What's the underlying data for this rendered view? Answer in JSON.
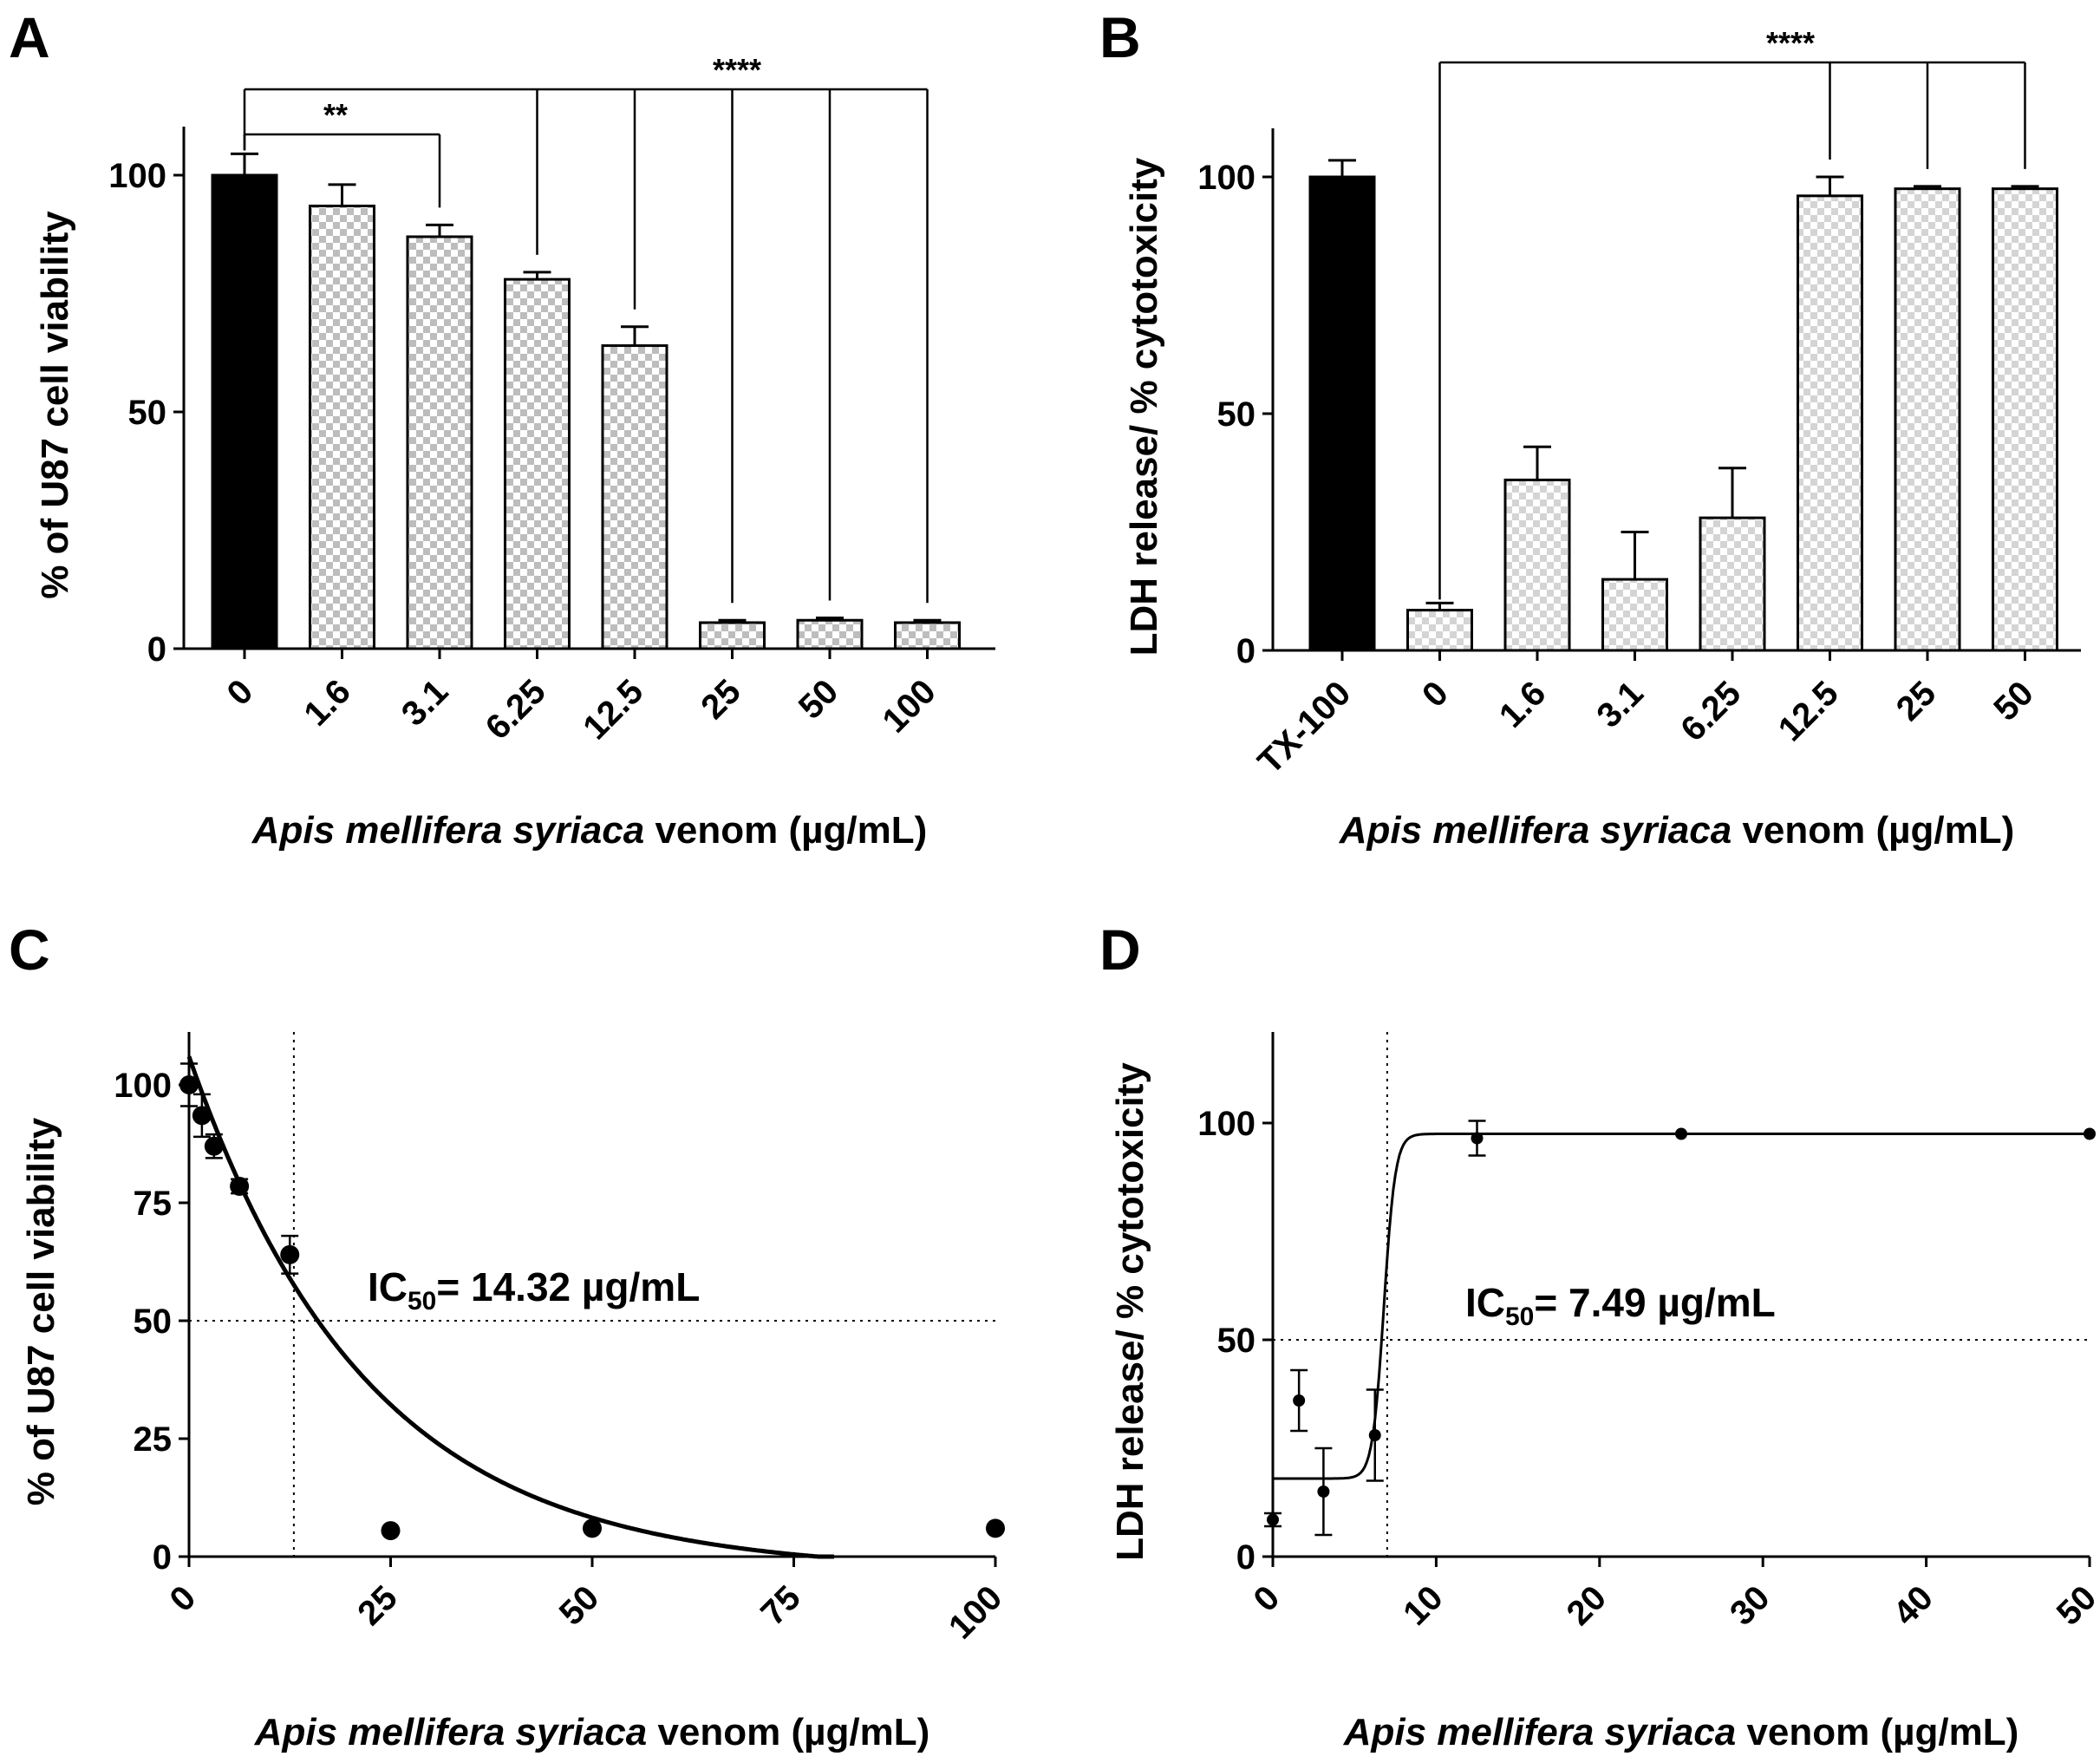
{
  "colors": {
    "ink": "#000000",
    "checker_light": "#ffffff",
    "checker_dark_A": "#bdbdbd",
    "checker_dark_B": "#d4d4d4"
  },
  "chart_data": [
    {
      "panel": "A",
      "type": "bar",
      "ylabel": "% of U87 cell viability",
      "xlabel_italic": "Apis mellifera syriaca",
      "xlabel_rest": " venom (µg/mL)",
      "ylim": [
        0,
        110
      ],
      "yticks": [
        0,
        50,
        100
      ],
      "categories": [
        "0",
        "1.6",
        "3.1",
        "6.25",
        "12.5",
        "25",
        "50",
        "100"
      ],
      "values": [
        100,
        93.5,
        87,
        78,
        64,
        5.5,
        6,
        5.5
      ],
      "errors": [
        4.5,
        4.5,
        2.5,
        1.5,
        4,
        0.5,
        0.5,
        0.5
      ],
      "fills": [
        "solid",
        "checker",
        "checker",
        "checker",
        "checker",
        "checker",
        "checker",
        "checker"
      ],
      "significance": [
        {
          "label": "**",
          "from": 0,
          "to": [
            2
          ]
        },
        {
          "label": "****",
          "from": 0,
          "to": [
            3,
            4,
            5,
            6,
            7
          ]
        }
      ]
    },
    {
      "panel": "B",
      "type": "bar",
      "ylabel": "LDH release/ % cytotoxicity",
      "xlabel_italic": "Apis mellifera syriaca",
      "xlabel_rest": " venom (µg/mL)",
      "ylim": [
        0,
        110
      ],
      "yticks": [
        0,
        50,
        100
      ],
      "categories": [
        "TX-100",
        "0",
        "1.6",
        "3.1",
        "6.25",
        "12.5",
        "25",
        "50"
      ],
      "values": [
        100,
        8.5,
        36,
        15,
        28,
        96,
        97.5,
        97.5
      ],
      "errors": [
        3.5,
        1.5,
        7,
        10,
        10.5,
        4,
        0.5,
        0.5
      ],
      "fills": [
        "solid",
        "checker",
        "checker",
        "checker",
        "checker",
        "checker",
        "checker",
        "checker"
      ],
      "significance": [
        {
          "label": "****",
          "from": 1,
          "to": [
            5,
            6,
            7
          ]
        }
      ]
    },
    {
      "panel": "C",
      "type": "scatter",
      "ylabel": "% of U87 cell viability",
      "xlabel_italic": "Apis mellifera syriaca",
      "xlabel_rest": " venom (µg/mL)",
      "xlim": [
        0,
        100
      ],
      "ylim": [
        0,
        110
      ],
      "xticks": [
        0,
        25,
        50,
        75,
        100
      ],
      "yticks": [
        0,
        25,
        50,
        75,
        100
      ],
      "x": [
        0,
        1.6,
        3.1,
        6.25,
        12.5,
        25,
        50,
        100
      ],
      "y": [
        100,
        93.5,
        87,
        78.5,
        64,
        5.5,
        6,
        6
      ],
      "errors": [
        4.5,
        4.5,
        2.5,
        1.5,
        4,
        0.5,
        0.5,
        0.5
      ],
      "ic50_value": 14.32,
      "ic50_label": "IC",
      "ic50_sub": "50",
      "ic50_text": "= 14.32 µg/mL",
      "hline": 50,
      "vline": 13,
      "fit": "exponential decay from 106 at x=0 reaching 0 at x≈78"
    },
    {
      "panel": "D",
      "type": "scatter",
      "ylabel": "LDH release/ % cytotoxicity",
      "xlabel_italic": "Apis mellifera syriaca",
      "xlabel_rest": " venom (µg/mL)",
      "xlim": [
        0,
        50
      ],
      "ylim": [
        0,
        120
      ],
      "xticks": [
        0,
        10,
        20,
        30,
        40,
        50
      ],
      "yticks": [
        0,
        50,
        100
      ],
      "x": [
        0,
        1.6,
        3.1,
        6.25,
        12.5,
        25,
        50
      ],
      "y": [
        8.5,
        36,
        15,
        28,
        96.5,
        97.5,
        97.5
      ],
      "errors": [
        1.5,
        7,
        10,
        10.5,
        4,
        0.5,
        0.5
      ],
      "ic50_value": 7.49,
      "ic50_label": "IC",
      "ic50_sub": "50",
      "ic50_text": "= 7.49 µg/mL",
      "hline": 50,
      "vline": 7,
      "fit": "sigmoid from 18 to 97.5 centered at x≈6.8"
    }
  ]
}
